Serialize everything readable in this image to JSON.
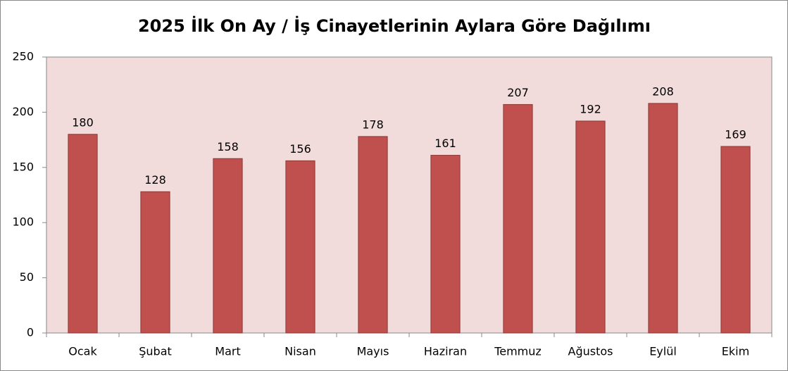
{
  "chart_data": {
    "type": "bar",
    "title": "2025 İlk On Ay / İş Cinayetlerinin Aylara Göre Dağılımı",
    "categories": [
      "Ocak",
      "Şubat",
      "Mart",
      "Nisan",
      "Mayıs",
      "Haziran",
      "Temmuz",
      "Ağustos",
      "Eylül",
      "Ekim"
    ],
    "values": [
      180,
      128,
      158,
      156,
      178,
      161,
      207,
      192,
      208,
      169
    ],
    "color": "#c0504d",
    "ylim": [
      0,
      250
    ],
    "yticks": [
      0,
      50,
      100,
      150,
      200,
      250
    ],
    "grid": false
  }
}
